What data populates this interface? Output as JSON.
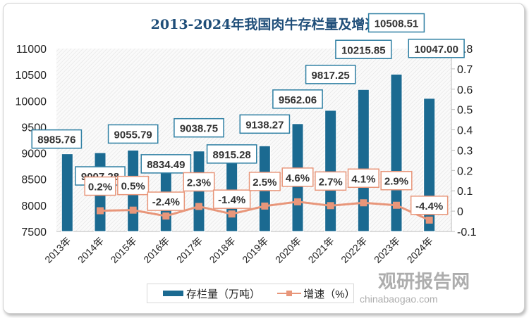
{
  "chart_data": {
    "type": "bar+line",
    "title": "2013-2024年我国肉牛存栏量及增速",
    "categories": [
      "2013年",
      "2014年",
      "2015年",
      "2016年",
      "2017年",
      "2018年",
      "2019年",
      "2020年",
      "2021年",
      "2022年",
      "2023年",
      "2024年"
    ],
    "series": [
      {
        "name": "存栏量（万吨）",
        "type": "bar",
        "axis": "left",
        "color": "#1b6a91",
        "values": [
          8985.76,
          9007.28,
          9055.79,
          8834.49,
          9038.75,
          8915.28,
          9138.27,
          9562.06,
          9817.25,
          10215.85,
          10508.51,
          10047.0
        ],
        "labels": [
          "8985.76",
          "9007.28",
          "9055.79",
          "8834.49",
          "9038.75",
          "8915.28",
          "9138.27",
          "9562.06",
          "9817.25",
          "10215.85",
          "10508.51",
          "10047.00"
        ]
      },
      {
        "name": "增速（%）",
        "type": "line",
        "axis": "right",
        "color": "#e8967a",
        "values": [
          null,
          0.002,
          0.005,
          -0.024,
          0.023,
          -0.014,
          0.025,
          0.046,
          0.027,
          0.041,
          0.029,
          -0.044
        ],
        "labels": [
          null,
          "0.2%",
          "0.5%",
          "-2.4%",
          "2.3%",
          "-1.4%",
          "2.5%",
          "4.6%",
          "2.7%",
          "4.1%",
          "2.9%",
          "-4.4%"
        ]
      }
    ],
    "ylim_left": [
      7500,
      11000
    ],
    "yticks_left": [
      "11000",
      "10500",
      "10000",
      "9500",
      "9000",
      "8500",
      "8000",
      "7500"
    ],
    "ylim_right": [
      -0.1,
      0.8
    ],
    "yticks_right": [
      "0.8",
      "0.7",
      "0.6",
      "0.5",
      "0.4",
      "0.3",
      "0.2",
      "0.1",
      "0",
      "-0.1"
    ],
    "grid": false,
    "legend": "bottom"
  },
  "watermark": {
    "name": "观研报告网",
    "url": "chinabaogao.com"
  }
}
